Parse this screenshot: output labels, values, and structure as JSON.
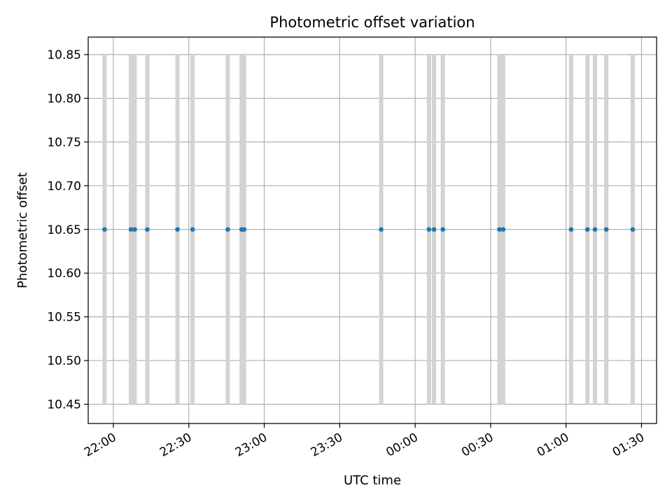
{
  "chart_data": {
    "type": "scatter",
    "title": "Photometric offset variation",
    "xlabel": "UTC time",
    "ylabel": "Photometric offset",
    "grid": true,
    "xlim": [
      "21:50:00",
      "01:36:00"
    ],
    "ylim": [
      10.428,
      10.87
    ],
    "x_ticks": [
      "22:00",
      "22:30",
      "23:00",
      "23:30",
      "00:00",
      "00:30",
      "01:00",
      "01:30"
    ],
    "y_ticks": [
      "10.45",
      "10.50",
      "10.55",
      "10.60",
      "10.65",
      "10.70",
      "10.75",
      "10.80",
      "10.85"
    ],
    "colors": {
      "point": "#1f77b4",
      "errorbar": "#d3d3d3",
      "grid": "#b0b0b0"
    },
    "series": [
      {
        "marker": "point",
        "x": [
          "21:56:30",
          "22:07:00",
          "22:08:30",
          "22:13:30",
          "22:25:30",
          "22:31:30",
          "22:45:30",
          "22:51:00",
          "22:52:00",
          "23:46:30",
          "00:05:30",
          "00:07:30",
          "00:11:00",
          "00:33:30",
          "00:35:00",
          "01:02:00",
          "01:08:30",
          "01:11:30",
          "01:16:00",
          "01:26:30"
        ],
        "y": [
          10.65,
          10.65,
          10.65,
          10.65,
          10.65,
          10.65,
          10.65,
          10.65,
          10.65,
          10.65,
          10.65,
          10.65,
          10.65,
          10.65,
          10.65,
          10.65,
          10.65,
          10.65,
          10.65,
          10.65
        ],
        "error": [
          0.2,
          0.2,
          0.2,
          0.2,
          0.2,
          0.2,
          0.2,
          0.2,
          0.2,
          0.2,
          0.2,
          0.2,
          0.2,
          0.2,
          0.2,
          0.2,
          0.2,
          0.2,
          0.2,
          0.2
        ]
      }
    ]
  }
}
